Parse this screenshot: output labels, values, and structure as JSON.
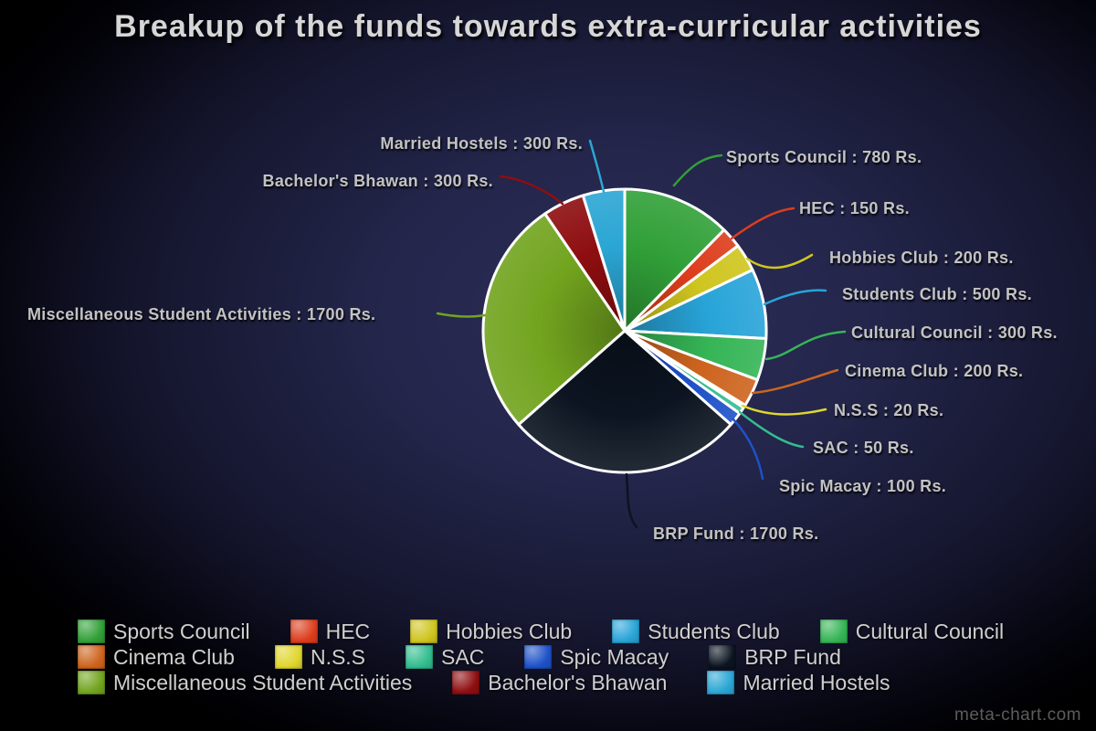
{
  "page": {
    "title": "Breakup of the funds towards extra-curricular activities",
    "watermark": "meta-chart.com"
  },
  "chart_data": {
    "type": "pie",
    "title": "Breakup of the funds towards extra-curricular activities",
    "unit": "Rs.",
    "total": 6300,
    "legend_position": "bottom",
    "start_angle_deg": 0,
    "direction": "clockwise",
    "slices": [
      {
        "label": "Sports Council",
        "value": 780,
        "color": "#31a038",
        "callout": "Sports Council : 780 Rs."
      },
      {
        "label": "HEC",
        "value": 150,
        "color": "#dd3d1c",
        "callout": "HEC : 150 Rs."
      },
      {
        "label": "Hobbies Club",
        "value": 200,
        "color": "#cfc51f",
        "callout": "Hobbies Club : 200 Rs."
      },
      {
        "label": "Students Club",
        "value": 500,
        "color": "#28a4d8",
        "callout": "Students Club : 500 Rs."
      },
      {
        "label": "Cultural Council",
        "value": 300,
        "color": "#35b556",
        "callout": "Cultural Council : 300 Rs."
      },
      {
        "label": "Cinema Club",
        "value": 200,
        "color": "#cd641f",
        "callout": "Cinema Club : 200 Rs."
      },
      {
        "label": "N.S.S",
        "value": 20,
        "color": "#e0d62e",
        "callout": "N.S.S : 20 Rs."
      },
      {
        "label": "SAC",
        "value": 50,
        "color": "#33bd8e",
        "callout": "SAC : 50 Rs."
      },
      {
        "label": "Spic Macay",
        "value": 100,
        "color": "#1e51c8",
        "callout": "Spic Macay : 100 Rs."
      },
      {
        "label": "BRP Fund",
        "value": 1700,
        "color": "#0b1420",
        "callout": "BRP Fund : 1700 Rs."
      },
      {
        "label": "Miscellaneous Student Activities",
        "value": 1700,
        "color": "#72a41f",
        "callout": "Miscellaneous Student Activities : 1700 Rs."
      },
      {
        "label": "Bachelor's Bhawan",
        "value": 300,
        "color": "#8e0e10",
        "callout": "Bachelor's Bhawan : 300 Rs."
      },
      {
        "label": "Married Hostels",
        "value": 300,
        "color": "#2ba6d4",
        "callout": "Married Hostels : 300 Rs."
      }
    ],
    "legend_rows": [
      [
        0,
        1,
        2,
        3,
        4
      ],
      [
        5,
        6,
        7,
        8,
        9
      ],
      [
        10,
        11,
        12
      ]
    ]
  }
}
